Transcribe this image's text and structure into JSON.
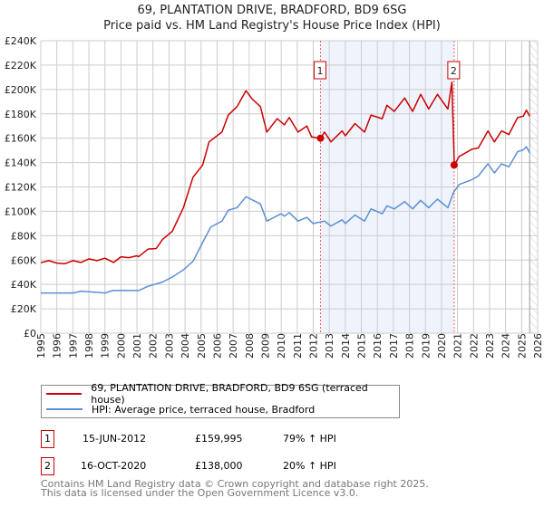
{
  "chart_data": {
    "type": "line",
    "title": "69, PLANTATION DRIVE, BRADFORD, BD9 6SG",
    "subtitle": "Price paid vs. HM Land Registry's House Price Index (HPI)",
    "xlim": [
      1995,
      2026
    ],
    "ylim": [
      0,
      240000
    ],
    "x_ticks": [
      "1995",
      "1996",
      "1997",
      "1998",
      "1999",
      "2000",
      "2001",
      "2002",
      "2003",
      "2004",
      "2005",
      "2006",
      "2007",
      "2008",
      "2009",
      "2010",
      "2011",
      "2012",
      "2013",
      "2014",
      "2015",
      "2016",
      "2017",
      "2018",
      "2019",
      "2020",
      "2021",
      "2022",
      "2023",
      "2024",
      "2025",
      "2026"
    ],
    "y_ticks": [
      {
        "v": 0,
        "label": "£0"
      },
      {
        "v": 20000,
        "label": "£20K"
      },
      {
        "v": 40000,
        "label": "£40K"
      },
      {
        "v": 60000,
        "label": "£60K"
      },
      {
        "v": 80000,
        "label": "£80K"
      },
      {
        "v": 100000,
        "label": "£100K"
      },
      {
        "v": 120000,
        "label": "£120K"
      },
      {
        "v": 140000,
        "label": "£140K"
      },
      {
        "v": 160000,
        "label": "£160K"
      },
      {
        "v": 180000,
        "label": "£180K"
      },
      {
        "v": 200000,
        "label": "£200K"
      },
      {
        "v": 220000,
        "label": "£220K"
      },
      {
        "v": 240000,
        "label": "£240K"
      }
    ],
    "grid": true,
    "colors": {
      "property": "#cc0000",
      "hpi": "#5b8fd4",
      "shade": "#eef3fc"
    },
    "series": [
      {
        "name": "69, PLANTATION DRIVE, BRADFORD, BD9 6SG (terraced house)",
        "key": "property",
        "x": [
          1995,
          1995.5,
          1996,
          1996.5,
          1997,
          1997.5,
          1998,
          1998.5,
          1999,
          1999.55,
          2000,
          2000.5,
          2001,
          2001.1,
          2001.7,
          2002.2,
          2002.6,
          2003.2,
          2003.9,
          2004.5,
          2005.1,
          2005.5,
          2006.3,
          2006.7,
          2007.25,
          2007.8,
          2008.2,
          2008.7,
          2009.1,
          2009.75,
          2010.2,
          2010.5,
          2011.05,
          2011.6,
          2011.9,
          2012.45,
          2012.7,
          2013.1,
          2013.8,
          2014,
          2014.6,
          2015.2,
          2015.6,
          2016.3,
          2016.6,
          2017.05,
          2017.7,
          2018.2,
          2018.7,
          2019.2,
          2019.75,
          2020.4,
          2020.65,
          2020.8,
          2021.1,
          2021.9,
          2022.3,
          2022.9,
          2023.3,
          2023.75,
          2024.2,
          2024.75,
          2025.1,
          2025.3,
          2025.5
        ],
        "y": [
          57800,
          59500,
          57500,
          57000,
          59500,
          58000,
          61000,
          59500,
          61500,
          58000,
          62700,
          62000,
          63500,
          62700,
          69000,
          69500,
          77000,
          83600,
          103000,
          128000,
          138000,
          157000,
          165000,
          179000,
          186000,
          199000,
          192000,
          186000,
          165000,
          176000,
          171000,
          177000,
          165000,
          170000,
          161000,
          159995,
          165000,
          157000,
          166000,
          162000,
          172000,
          165000,
          179000,
          176000,
          187000,
          182000,
          193000,
          182000,
          196000,
          184000,
          196000,
          184000,
          206000,
          138000,
          145000,
          151000,
          152000,
          166000,
          157000,
          166000,
          163000,
          177000,
          178000,
          183000,
          178000
        ]
      },
      {
        "name": "HPI: Average price, terraced house, Bradford",
        "key": "hpi",
        "x": [
          1995,
          1996,
          1997,
          1997.5,
          1998,
          1999,
          1999.5,
          2001.1,
          2001.7,
          2002.6,
          2003.2,
          2003.9,
          2004.5,
          2005.2,
          2005.6,
          2006.3,
          2006.7,
          2007.25,
          2007.8,
          2008.7,
          2009.1,
          2010,
          2010.2,
          2010.5,
          2011.05,
          2011.6,
          2012,
          2012.7,
          2013.1,
          2013.8,
          2014,
          2014.6,
          2015.2,
          2015.6,
          2016.3,
          2016.6,
          2017.05,
          2017.7,
          2018.2,
          2018.7,
          2019.2,
          2019.75,
          2020.4,
          2020.75,
          2021.1,
          2021.9,
          2022.3,
          2022.9,
          2023.3,
          2023.75,
          2024.2,
          2024.75,
          2025.1,
          2025.3,
          2025.5
        ],
        "y": [
          33000,
          33000,
          33000,
          34500,
          34000,
          33000,
          35000,
          35000,
          38500,
          42000,
          46000,
          52000,
          59000,
          77000,
          87000,
          92000,
          101000,
          103000,
          112000,
          106000,
          92000,
          98000,
          96000,
          99000,
          92000,
          95000,
          90000,
          92000,
          88000,
          93000,
          90000,
          97000,
          92000,
          102000,
          98000,
          104500,
          102000,
          108000,
          102000,
          109000,
          103000,
          110000,
          103000,
          115500,
          122000,
          126000,
          129000,
          139000,
          131500,
          139000,
          136500,
          149000,
          150500,
          153000,
          148000
        ]
      }
    ],
    "sales": [
      {
        "label": "1",
        "x": 2012.45,
        "y": 159995,
        "date": "15-JUN-2012",
        "price": "£159,995",
        "hpi": "79% ↑ HPI"
      },
      {
        "label": "2",
        "x": 2020.79,
        "y": 138000,
        "date": "16-OCT-2020",
        "price": "£138,000",
        "hpi": "20% ↑ HPI"
      }
    ],
    "forecast_from": 2025.5
  },
  "legend": {
    "property": "69, PLANTATION DRIVE, BRADFORD, BD9 6SG (terraced house)",
    "hpi": "HPI: Average price, terraced house, Bradford"
  },
  "footer": {
    "line1": "Contains HM Land Registry data © Crown copyright and database right 2025.",
    "line2": "This data is licensed under the Open Government Licence v3.0."
  }
}
